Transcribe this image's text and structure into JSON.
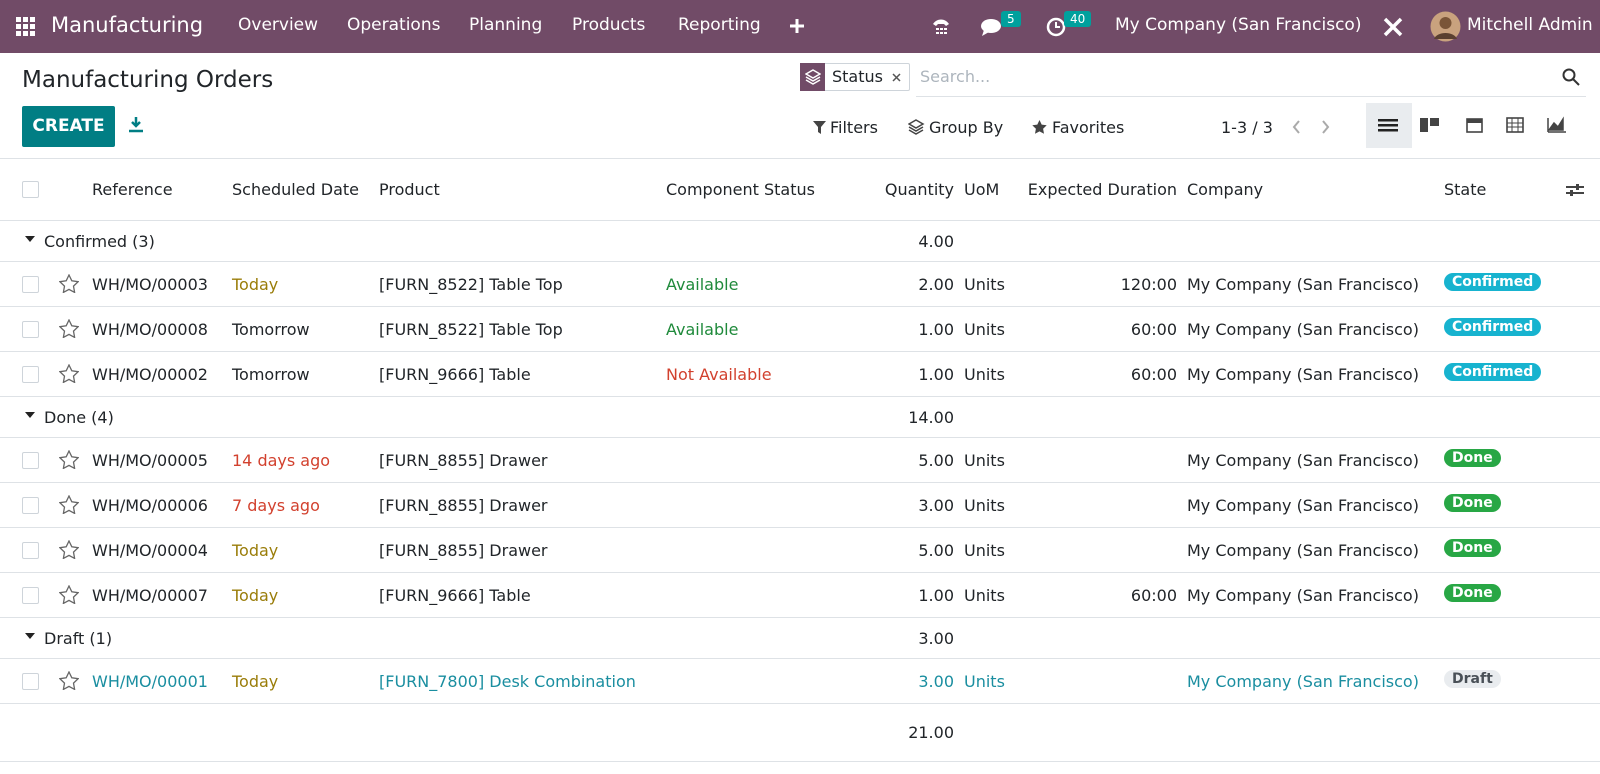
{
  "navbar": {
    "app": "Manufacturing",
    "menu": [
      "Overview",
      "Operations",
      "Planning",
      "Products",
      "Reporting"
    ],
    "messages_badge": 5,
    "activities_badge": 40,
    "company": "My Company (San Francisco)",
    "user": "Mitchell Admin"
  },
  "control_panel": {
    "title": "Manufacturing Orders",
    "create": "CREATE",
    "search_facet": "Status",
    "search_placeholder": "Search...",
    "filters": "Filters",
    "group_by": "Group By",
    "favorites": "Favorites",
    "pager": "1-3 / 3"
  },
  "table": {
    "columns": [
      "Reference",
      "Scheduled Date",
      "Product",
      "Component Status",
      "Quantity",
      "UoM",
      "Expected Duration",
      "Company",
      "State"
    ],
    "groups": [
      {
        "label": "Confirmed (3)",
        "quantity": "4.00",
        "rows": [
          {
            "reference": "WH/MO/00003",
            "date": "Today",
            "date_color": "#9a7d0a",
            "product": "[FURN_8522] Table Top",
            "component_status": "Available",
            "status_color": "#1f8a3b",
            "quantity": "2.00",
            "uom": "Units",
            "duration": "120:00",
            "company": "My Company (San Francisco)",
            "state": "Confirmed",
            "state_color": "#17b3cf"
          },
          {
            "reference": "WH/MO/00008",
            "date": "Tomorrow",
            "product": "[FURN_8522] Table Top",
            "component_status": "Available",
            "status_color": "#1f8a3b",
            "quantity": "1.00",
            "uom": "Units",
            "duration": "60:00",
            "company": "My Company (San Francisco)",
            "state": "Confirmed",
            "state_color": "#17b3cf"
          },
          {
            "reference": "WH/MO/00002",
            "date": "Tomorrow",
            "product": "[FURN_9666] Table",
            "component_status": "Not Available",
            "status_color": "#d2412e",
            "quantity": "1.00",
            "uom": "Units",
            "duration": "60:00",
            "company": "My Company (San Francisco)",
            "state": "Confirmed",
            "state_color": "#17b3cf"
          }
        ]
      },
      {
        "label": "Done (4)",
        "quantity": "14.00",
        "rows": [
          {
            "reference": "WH/MO/00005",
            "date": "14 days ago",
            "date_color": "#d2412e",
            "product": "[FURN_8855] Drawer",
            "quantity": "5.00",
            "uom": "Units",
            "company": "My Company (San Francisco)",
            "state": "Done",
            "state_color": "#28a745"
          },
          {
            "reference": "WH/MO/00006",
            "date": "7 days ago",
            "date_color": "#d2412e",
            "product": "[FURN_8855] Drawer",
            "quantity": "3.00",
            "uom": "Units",
            "company": "My Company (San Francisco)",
            "state": "Done",
            "state_color": "#28a745"
          },
          {
            "reference": "WH/MO/00004",
            "date": "Today",
            "date_color": "#9a7d0a",
            "product": "[FURN_8855] Drawer",
            "quantity": "5.00",
            "uom": "Units",
            "company": "My Company (San Francisco)",
            "state": "Done",
            "state_color": "#28a745"
          },
          {
            "reference": "WH/MO/00007",
            "date": "Today",
            "date_color": "#9a7d0a",
            "product": "[FURN_9666] Table",
            "quantity": "1.00",
            "uom": "Units",
            "duration": "60:00",
            "company": "My Company (San Francisco)",
            "state": "Done",
            "state_color": "#28a745"
          }
        ]
      },
      {
        "label": "Draft (1)",
        "quantity": "3.00",
        "rows": [
          {
            "reference": "WH/MO/00001",
            "date": "Today",
            "date_color": "#9a7d0a",
            "product": "[FURN_7800] Desk Combination",
            "quantity": "3.00",
            "uom": "Units",
            "company": "My Company (San Francisco)",
            "state": "Draft",
            "state_color": "#e9ecef",
            "link": true
          }
        ]
      }
    ],
    "total": "21.00"
  }
}
